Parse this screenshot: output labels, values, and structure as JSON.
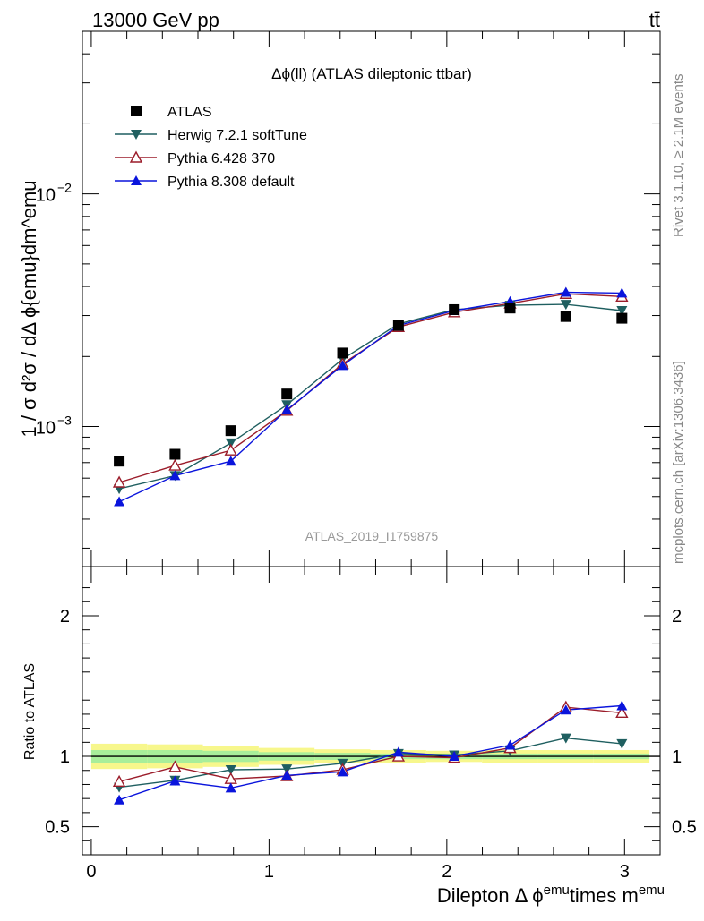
{
  "header": {
    "energy_label": "13000 GeV pp",
    "process_label": "tt̄"
  },
  "side_labels": {
    "rivet": "Rivet 3.1.10, ≥ 2.1M events",
    "mcplots": "mcplots.cern.ch [arXiv:1306.3436]"
  },
  "chart_data": [
    {
      "type": "line",
      "title": "Δϕ(ll) (ATLAS dileptonic ttbar)",
      "ylabel": "1 / σ  d²σ / dΔ ϕ{emu}dm^emu",
      "yscale": "log",
      "ylim": [
        0.00025,
        0.05
      ],
      "xlim": [
        -0.05,
        3.2
      ],
      "watermark": "ATLAS_2019_I1759875",
      "legend_position": "top-left",
      "y_tick_labels": [
        {
          "value": 0.001,
          "base": "10",
          "exp": "−3"
        },
        {
          "value": 0.01,
          "base": "10",
          "exp": "−2"
        }
      ],
      "x": [
        0.157,
        0.471,
        0.785,
        1.1,
        1.414,
        1.728,
        2.042,
        2.356,
        2.67,
        2.985
      ],
      "series": [
        {
          "name": "ATLAS",
          "color": "#000000",
          "marker": "square",
          "values": [
            0.00071,
            0.00076,
            0.00096,
            0.00138,
            0.00207,
            0.00272,
            0.00318,
            0.00323,
            0.00297,
            0.00292
          ]
        },
        {
          "name": "Herwig 7.2.1 softTune",
          "color": "#1f5f60",
          "marker": "triangle-down",
          "values": [
            0.00054,
            0.000615,
            0.00085,
            0.00124,
            0.00195,
            0.00276,
            0.00318,
            0.00332,
            0.00335,
            0.00315
          ]
        },
        {
          "name": "Pythia 6.428 370",
          "color": "#9b1c2a",
          "marker": "triangle-up-open",
          "values": [
            0.000575,
            0.00068,
            0.00079,
            0.00117,
            0.00186,
            0.00268,
            0.0031,
            0.00338,
            0.00372,
            0.00362
          ]
        },
        {
          "name": "Pythia 8.308 default",
          "color": "#0a14dc",
          "marker": "triangle-up",
          "values": [
            0.000475,
            0.000615,
            0.00071,
            0.00118,
            0.00183,
            0.00272,
            0.00315,
            0.00345,
            0.00378,
            0.00375
          ]
        }
      ]
    },
    {
      "type": "line",
      "ylabel": "Ratio to ATLAS",
      "ylim": [
        0.3,
        2.35
      ],
      "xlim": [
        -0.05,
        3.2
      ],
      "xlabel_main": "Dilepton Δ ϕ",
      "xlabel_sup1": "emu",
      "xlabel_mid": "times m",
      "xlabel_sup2": "emu",
      "x_ticks": [
        "0",
        "1",
        "2",
        "3"
      ],
      "y_ticks": [
        "0.5",
        "1",
        "2"
      ],
      "x": [
        0.157,
        0.471,
        0.785,
        1.1,
        1.414,
        1.728,
        2.042,
        2.356,
        2.67,
        2.985
      ],
      "band_edges": [
        0,
        0.314,
        0.628,
        0.942,
        1.256,
        1.57,
        1.884,
        2.198,
        2.512,
        2.826,
        3.14
      ],
      "band_inner": [
        0.045,
        0.045,
        0.04,
        0.03,
        0.025,
        0.02,
        0.02,
        0.02,
        0.02,
        0.02
      ],
      "band_outer": [
        0.09,
        0.085,
        0.075,
        0.06,
        0.05,
        0.045,
        0.04,
        0.045,
        0.045,
        0.045
      ],
      "series": [
        {
          "name": "Herwig 7.2.1 softTune",
          "values": [
            0.78,
            0.83,
            0.905,
            0.91,
            0.95,
            1.02,
            1.01,
            1.04,
            1.13,
            1.09
          ]
        },
        {
          "name": "Pythia 6.428 370",
          "values": [
            0.82,
            0.925,
            0.84,
            0.86,
            0.905,
            1.0,
            0.99,
            1.06,
            1.35,
            1.31
          ]
        },
        {
          "name": "Pythia 8.308 default",
          "values": [
            0.69,
            0.825,
            0.775,
            0.865,
            0.89,
            1.03,
            1.0,
            1.08,
            1.33,
            1.36
          ]
        }
      ]
    }
  ]
}
